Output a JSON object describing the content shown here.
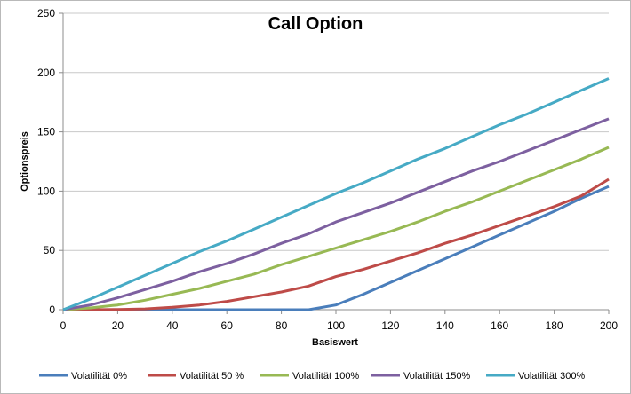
{
  "chart_data": {
    "type": "line",
    "title": "Call Option",
    "xlabel": "Basiswert",
    "ylabel": "Optionspreis",
    "xlim": [
      0,
      200
    ],
    "ylim": [
      0,
      250
    ],
    "x_ticks": [
      "0",
      "20",
      "40",
      "60",
      "80",
      "100",
      "120",
      "140",
      "160",
      "180",
      "200"
    ],
    "y_ticks": [
      "0",
      "50",
      "100",
      "150",
      "200",
      "250"
    ],
    "grid": "horizontal",
    "legend_position": "bottom",
    "x": [
      0,
      10,
      20,
      30,
      40,
      50,
      60,
      70,
      80,
      90,
      100,
      110,
      120,
      130,
      140,
      150,
      160,
      170,
      180,
      190,
      200
    ],
    "series": [
      {
        "name": "Volatilität 0%",
        "color": "#4a7ebb",
        "values": [
          0,
          0,
          0,
          0,
          0,
          0,
          0,
          0,
          0,
          0,
          4,
          13,
          23,
          33,
          43,
          53,
          63,
          73,
          83,
          94,
          104
        ]
      },
      {
        "name": "Volatilität 50 %",
        "color": "#be4b48",
        "values": [
          0,
          0,
          0.2,
          0.7,
          2,
          4,
          7,
          11,
          15,
          20,
          28,
          34,
          41,
          48,
          56,
          63,
          71,
          79,
          87,
          96,
          110
        ]
      },
      {
        "name": "Volatilität 100%",
        "color": "#98b954",
        "values": [
          0,
          1.5,
          4,
          8,
          13,
          18,
          24,
          30,
          38,
          45,
          52,
          59,
          66,
          74,
          83,
          91,
          100,
          109,
          118,
          127,
          137
        ]
      },
      {
        "name": "Volatilität 150%",
        "color": "#7d60a0",
        "values": [
          0,
          4,
          10,
          17,
          24,
          32,
          39,
          47,
          56,
          64,
          74,
          82,
          90,
          99,
          108,
          117,
          125,
          134,
          143,
          152,
          161
        ]
      },
      {
        "name": "Volatilität 300%",
        "color": "#46aac5",
        "values": [
          0,
          9,
          19,
          29,
          39,
          49,
          58,
          68,
          78,
          88,
          98,
          107,
          117,
          127,
          136,
          146,
          156,
          165,
          175,
          185,
          195
        ]
      }
    ]
  }
}
